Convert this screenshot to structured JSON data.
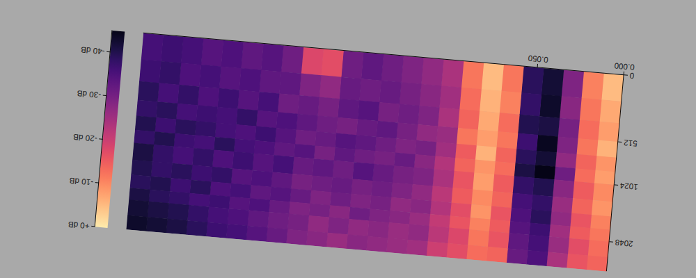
{
  "chart_data": {
    "type": "heatmap",
    "x_bins": [
      0,
      0.0116,
      0.0232,
      0.0348,
      0.0464,
      0.058,
      0.0696,
      0.0812,
      0.0928,
      0.1044,
      0.116,
      0.1276,
      0.1392,
      0.1508,
      0.1624,
      0.174,
      0.1856,
      0.1972,
      0.2088,
      0.2204,
      0.232,
      0.2436,
      0.2552,
      0.2668,
      0.2784
    ],
    "y_bins": [
      0,
      170,
      340,
      512,
      680,
      850,
      1024,
      1280,
      1536,
      1792,
      2048,
      2420,
      2800
    ],
    "values": [
      [
        -5,
        -11,
        -29,
        -42,
        -39,
        -12,
        -5,
        -12,
        -24,
        -27,
        -29,
        -31,
        -33,
        -31,
        -17,
        -18,
        -31,
        -34,
        -33,
        -35,
        -34,
        -36,
        -37,
        -36
      ],
      [
        -7,
        -12,
        -28,
        -43,
        -38,
        -11,
        -6,
        -13,
        -25,
        -28,
        -30,
        -32,
        -31,
        -32,
        -27,
        -29,
        -33,
        -33,
        -35,
        -34,
        -36,
        -35,
        -38,
        -37
      ],
      [
        -8,
        -13,
        -30,
        -41,
        -40,
        -13,
        -7,
        -14,
        -24,
        -29,
        -31,
        -30,
        -34,
        -33,
        -30,
        -32,
        -31,
        -36,
        -34,
        -37,
        -35,
        -38,
        -36,
        -39
      ],
      [
        -6,
        -12,
        -29,
        -44,
        -37,
        -12,
        -8,
        -12,
        -26,
        -27,
        -30,
        -33,
        -32,
        -30,
        -31,
        -33,
        -35,
        -34,
        -38,
        -36,
        -37,
        -36,
        -39,
        -38
      ],
      [
        -9,
        -14,
        -27,
        -42,
        -39,
        -14,
        -6,
        -15,
        -25,
        -30,
        -29,
        -31,
        -33,
        -34,
        -32,
        -31,
        -34,
        -37,
        -35,
        -36,
        -38,
        -39,
        -37,
        -40
      ],
      [
        -8,
        -13,
        -31,
        -45,
        -41,
        -13,
        -9,
        -14,
        -23,
        -28,
        -32,
        -30,
        -31,
        -33,
        -30,
        -34,
        -33,
        -35,
        -36,
        -39,
        -36,
        -37,
        -40,
        -38
      ],
      [
        -10,
        -15,
        -28,
        -40,
        -38,
        -15,
        -8,
        -16,
        -24,
        -29,
        -30,
        -32,
        -34,
        -31,
        -33,
        -32,
        -36,
        -34,
        -37,
        -35,
        -38,
        -36,
        -38,
        -41
      ],
      [
        -9,
        -14,
        -26,
        -38,
        -36,
        -14,
        -10,
        -15,
        -22,
        -27,
        -29,
        -31,
        -30,
        -32,
        -31,
        -30,
        -33,
        -35,
        -34,
        -38,
        -37,
        -39,
        -38,
        -40
      ],
      [
        -11,
        -16,
        -27,
        -39,
        -35,
        -16,
        -9,
        -17,
        -23,
        -28,
        -27,
        -30,
        -29,
        -31,
        -29,
        -32,
        -34,
        -33,
        -36,
        -35,
        -39,
        -37,
        -40,
        -39
      ],
      [
        -12,
        -15,
        -25,
        -37,
        -34,
        -15,
        -11,
        -16,
        -21,
        -26,
        -28,
        -29,
        -31,
        -28,
        -30,
        -29,
        -32,
        -35,
        -34,
        -37,
        -36,
        -38,
        -39,
        -41
      ],
      [
        -13,
        -17,
        -26,
        -36,
        -33,
        -16,
        -12,
        -18,
        -22,
        -27,
        -26,
        -28,
        -27,
        -29,
        -27,
        -30,
        -31,
        -33,
        -35,
        -36,
        -38,
        -40,
        -41,
        -42
      ],
      [
        -14,
        -16,
        -24,
        -35,
        -32,
        -14,
        -13,
        -17,
        -20,
        -25,
        -26,
        -27,
        -28,
        -26,
        -28,
        -29,
        -32,
        -34,
        -36,
        -37,
        -39,
        -41,
        -42,
        -43
      ]
    ],
    "xlim": [
      0,
      0.2784
    ],
    "xticks": [
      {
        "value": 0,
        "label": "0.000"
      },
      {
        "value": 0.05,
        "label": "0.050"
      }
    ],
    "ylim": [
      0,
      2800
    ],
    "yticks": [
      0,
      512,
      1024,
      2048
    ],
    "log": "y",
    "color_range": [
      -45,
      0
    ],
    "color_ticks": [
      {
        "value": 0,
        "label": "+0 dB"
      },
      {
        "value": -10,
        "label": "-10 dB"
      },
      {
        "value": -20,
        "label": "-20 dB"
      },
      {
        "value": -30,
        "label": "-30 dB"
      },
      {
        "value": -40,
        "label": "-40 dB"
      }
    ]
  }
}
